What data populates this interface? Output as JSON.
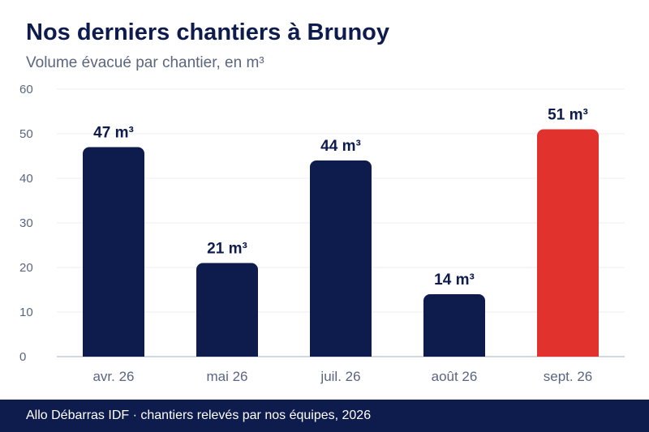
{
  "header": {
    "title": "Nos derniers chantiers à Brunoy",
    "subtitle": "Volume évacué par chantier, en m³"
  },
  "footer": {
    "text": "Allo Débarras IDF · chantiers relevés par nos équipes, 2026"
  },
  "colors": {
    "navy": "#0e1b4d",
    "highlight": "#e2322e",
    "text_muted": "#5a6580"
  },
  "chart_data": {
    "type": "bar",
    "title": "Nos derniers chantiers à Brunoy",
    "subtitle": "Volume évacué par chantier, en m³",
    "categories": [
      "avr. 26",
      "mai 26",
      "juil. 26",
      "août 26",
      "sept. 26"
    ],
    "values": [
      47,
      21,
      44,
      14,
      51
    ],
    "data_labels": [
      "47 m³",
      "21 m³",
      "44 m³",
      "14 m³",
      "51 m³"
    ],
    "highlight_index": 4,
    "ylim": [
      0,
      60
    ],
    "yticks": [
      0,
      10,
      20,
      30,
      40,
      50,
      60
    ],
    "xlabel": "",
    "ylabel": "",
    "grid": true,
    "legend": "none"
  }
}
